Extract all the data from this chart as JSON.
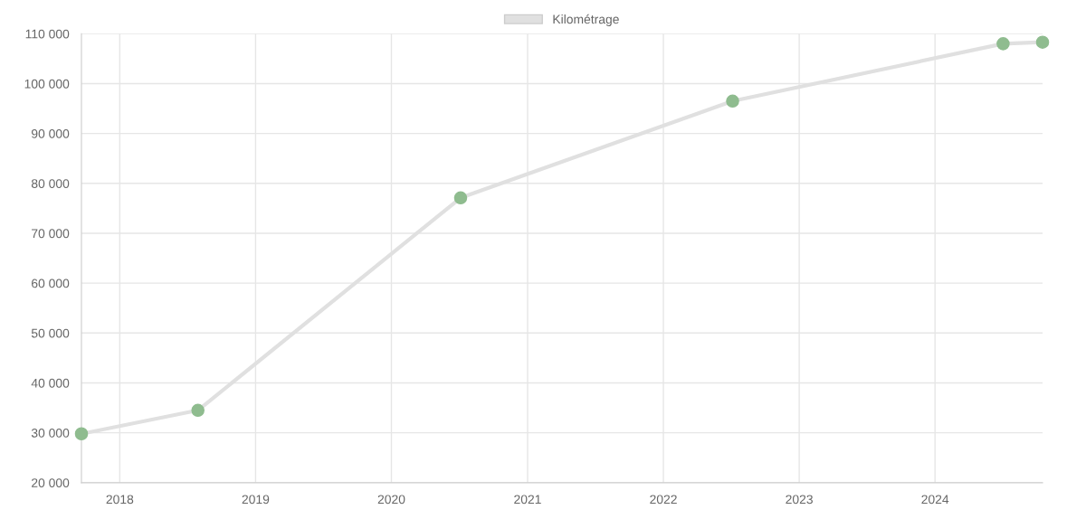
{
  "chart_data": {
    "type": "line",
    "x": [
      "2017-09-20",
      "2018-07-30",
      "2020-07-05",
      "2022-07-06",
      "2024-07-02",
      "2024-10-16"
    ],
    "series": [
      {
        "name": "Kilométrage",
        "color": "#e0e0e0",
        "colors": [
          "#8fbc8f",
          "#8fbc8f",
          "#8fbc8f",
          "#8fbc8f",
          "#8fbc8f",
          "#8fbc8f"
        ],
        "values": [
          29800,
          34500,
          77100,
          96500,
          108000,
          108300
        ]
      }
    ],
    "xlim": [
      "2017-09-20",
      "2024-10-16"
    ],
    "xticks": [
      {
        "value": "2018",
        "label": "2018"
      },
      {
        "value": "2019",
        "label": "2019"
      },
      {
        "value": "2020",
        "label": "2020"
      },
      {
        "value": "2021",
        "label": "2021"
      },
      {
        "value": "2022",
        "label": "2022"
      },
      {
        "value": "2023",
        "label": "2023"
      },
      {
        "value": "2024",
        "label": "2024"
      }
    ],
    "ylim": [
      20000,
      110000
    ],
    "yticks": [
      {
        "value": 20000,
        "label": "20 000"
      },
      {
        "value": 30000,
        "label": "30 000"
      },
      {
        "value": 40000,
        "label": "40 000"
      },
      {
        "value": 50000,
        "label": "50 000"
      },
      {
        "value": 60000,
        "label": "60 000"
      },
      {
        "value": 70000,
        "label": "70 000"
      },
      {
        "value": 80000,
        "label": "80 000"
      },
      {
        "value": 90000,
        "label": "90 000"
      },
      {
        "value": 100000,
        "label": "100 000"
      },
      {
        "value": 110000,
        "label": "110 000"
      }
    ],
    "grid": true,
    "legend": "top",
    "marker": "circle",
    "line_style": "solid"
  }
}
